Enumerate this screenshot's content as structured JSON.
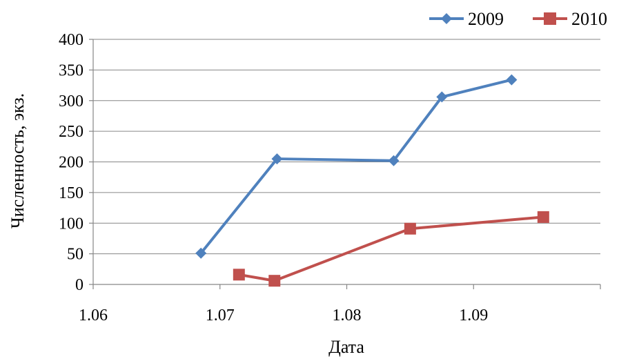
{
  "chart_data": {
    "type": "line",
    "title": "",
    "xlabel": "Дата",
    "ylabel": "Численность, экз.",
    "xlim": [
      1.06,
      1.1
    ],
    "ylim": [
      0,
      400
    ],
    "x_ticks": [
      "1.06",
      "1.07",
      "1.08",
      "1.09"
    ],
    "y_ticks": [
      "0",
      "50",
      "100",
      "150",
      "200",
      "250",
      "300",
      "350",
      "400"
    ],
    "grid": true,
    "legend_position": "top-right",
    "series": [
      {
        "name": "2009",
        "color": "#4F81BD",
        "marker": "diamond",
        "x": [
          1.0685,
          1.0745,
          1.0837,
          1.0875,
          1.093
        ],
        "y": [
          51,
          205,
          202,
          306,
          334
        ]
      },
      {
        "name": "2010",
        "color": "#C0504D",
        "marker": "square",
        "x": [
          1.0715,
          1.0743,
          1.085,
          1.0955
        ],
        "y": [
          16,
          6,
          91,
          110
        ]
      }
    ]
  }
}
